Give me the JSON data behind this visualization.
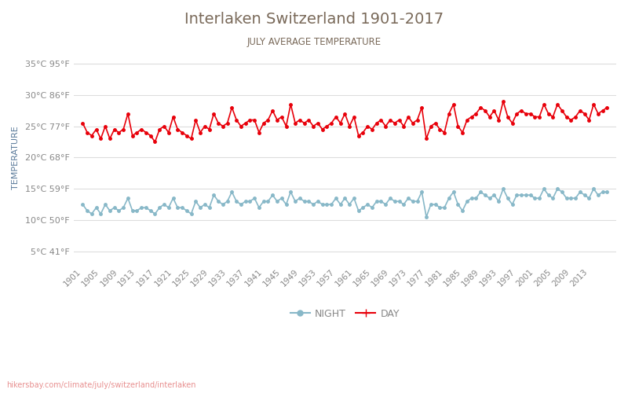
{
  "title": "Interlaken Switzerland 1901-2017",
  "subtitle": "JULY AVERAGE TEMPERATURE",
  "ylabel": "TEMPERATURE",
  "url_text": "hikersbay.com/climate/july/switzerland/interlaken",
  "years": [
    1901,
    1902,
    1903,
    1904,
    1905,
    1906,
    1907,
    1908,
    1909,
    1910,
    1911,
    1912,
    1913,
    1914,
    1915,
    1916,
    1917,
    1918,
    1919,
    1920,
    1921,
    1922,
    1923,
    1924,
    1925,
    1926,
    1927,
    1928,
    1929,
    1930,
    1931,
    1932,
    1933,
    1934,
    1935,
    1936,
    1937,
    1938,
    1939,
    1940,
    1941,
    1942,
    1943,
    1944,
    1945,
    1946,
    1947,
    1948,
    1949,
    1950,
    1951,
    1952,
    1953,
    1954,
    1955,
    1956,
    1957,
    1958,
    1959,
    1960,
    1961,
    1962,
    1963,
    1964,
    1965,
    1966,
    1967,
    1968,
    1969,
    1970,
    1971,
    1972,
    1973,
    1974,
    1975,
    1976,
    1977,
    1978,
    1979,
    1980,
    1981,
    1982,
    1983,
    1984,
    1985,
    1986,
    1987,
    1988,
    1989,
    1990,
    1991,
    1992,
    1993,
    1994,
    1995,
    1996,
    1997,
    1998,
    1999,
    2000,
    2001,
    2002,
    2003,
    2004,
    2005,
    2006,
    2007,
    2008,
    2009,
    2010,
    2011,
    2012,
    2013,
    2014,
    2015,
    2016,
    2017
  ],
  "day_temps": [
    25.5,
    24.0,
    23.5,
    24.5,
    23.0,
    25.0,
    23.0,
    24.5,
    24.0,
    24.5,
    27.0,
    23.5,
    24.0,
    24.5,
    24.0,
    23.5,
    22.5,
    24.5,
    25.0,
    24.0,
    26.5,
    24.5,
    24.0,
    23.5,
    23.0,
    26.0,
    24.0,
    25.0,
    24.5,
    27.0,
    25.5,
    25.0,
    25.5,
    28.0,
    26.0,
    25.0,
    25.5,
    26.0,
    26.0,
    24.0,
    25.5,
    26.0,
    27.5,
    26.0,
    26.5,
    25.0,
    28.5,
    25.5,
    26.0,
    25.5,
    26.0,
    25.0,
    25.5,
    24.5,
    25.0,
    25.5,
    26.5,
    25.5,
    27.0,
    25.0,
    26.5,
    23.5,
    24.0,
    25.0,
    24.5,
    25.5,
    26.0,
    25.0,
    26.0,
    25.5,
    26.0,
    25.0,
    26.5,
    25.5,
    26.0,
    28.0,
    23.0,
    25.0,
    25.5,
    24.5,
    24.0,
    27.0,
    28.5,
    25.0,
    24.0,
    26.0,
    26.5,
    27.0,
    28.0,
    27.5,
    26.5,
    27.5,
    26.0,
    29.0,
    26.5,
    25.5,
    27.0,
    27.5,
    27.0,
    27.0,
    26.5,
    26.5,
    28.5,
    27.0,
    26.5,
    28.5,
    27.5,
    26.5,
    26.0,
    26.5,
    27.5,
    27.0,
    26.0,
    28.5,
    27.0,
    27.5,
    28.0
  ],
  "night_temps": [
    12.5,
    11.5,
    11.0,
    12.0,
    11.0,
    12.5,
    11.5,
    12.0,
    11.5,
    12.0,
    13.5,
    11.5,
    11.5,
    12.0,
    12.0,
    11.5,
    11.0,
    12.0,
    12.5,
    12.0,
    13.5,
    12.0,
    12.0,
    11.5,
    11.0,
    13.0,
    12.0,
    12.5,
    12.0,
    14.0,
    13.0,
    12.5,
    13.0,
    14.5,
    13.0,
    12.5,
    13.0,
    13.0,
    13.5,
    12.0,
    13.0,
    13.0,
    14.0,
    13.0,
    13.5,
    12.5,
    14.5,
    13.0,
    13.5,
    13.0,
    13.0,
    12.5,
    13.0,
    12.5,
    12.5,
    12.5,
    13.5,
    12.5,
    13.5,
    12.5,
    13.5,
    11.5,
    12.0,
    12.5,
    12.0,
    13.0,
    13.0,
    12.5,
    13.5,
    13.0,
    13.0,
    12.5,
    13.5,
    13.0,
    13.0,
    14.5,
    10.5,
    12.5,
    12.5,
    12.0,
    12.0,
    13.5,
    14.5,
    12.5,
    11.5,
    13.0,
    13.5,
    13.5,
    14.5,
    14.0,
    13.5,
    14.0,
    13.0,
    15.0,
    13.5,
    12.5,
    14.0,
    14.0,
    14.0,
    14.0,
    13.5,
    13.5,
    15.0,
    14.0,
    13.5,
    15.0,
    14.5,
    13.5,
    13.5,
    13.5,
    14.5,
    14.0,
    13.5,
    15.0,
    14.0,
    14.5,
    14.5
  ],
  "day_color": "#e8000a",
  "night_color": "#88b8c8",
  "title_color": "#7a6a5a",
  "subtitle_color": "#7a6a5a",
  "ylabel_color": "#5a7a9a",
  "tick_color": "#888888",
  "grid_color": "#dddddd",
  "url_color": "#e89090",
  "yticks_celsius": [
    5,
    10,
    15,
    20,
    25,
    30,
    35
  ],
  "yticks_fahrenheit": [
    41,
    50,
    59,
    68,
    77,
    86,
    95
  ],
  "ylim": [
    3,
    37
  ],
  "xtick_years": [
    1901,
    1905,
    1909,
    1913,
    1917,
    1921,
    1925,
    1929,
    1933,
    1937,
    1941,
    1945,
    1949,
    1953,
    1957,
    1961,
    1965,
    1969,
    1973,
    1977,
    1981,
    1985,
    1989,
    1993,
    1997,
    2001,
    2005,
    2009,
    2013
  ]
}
